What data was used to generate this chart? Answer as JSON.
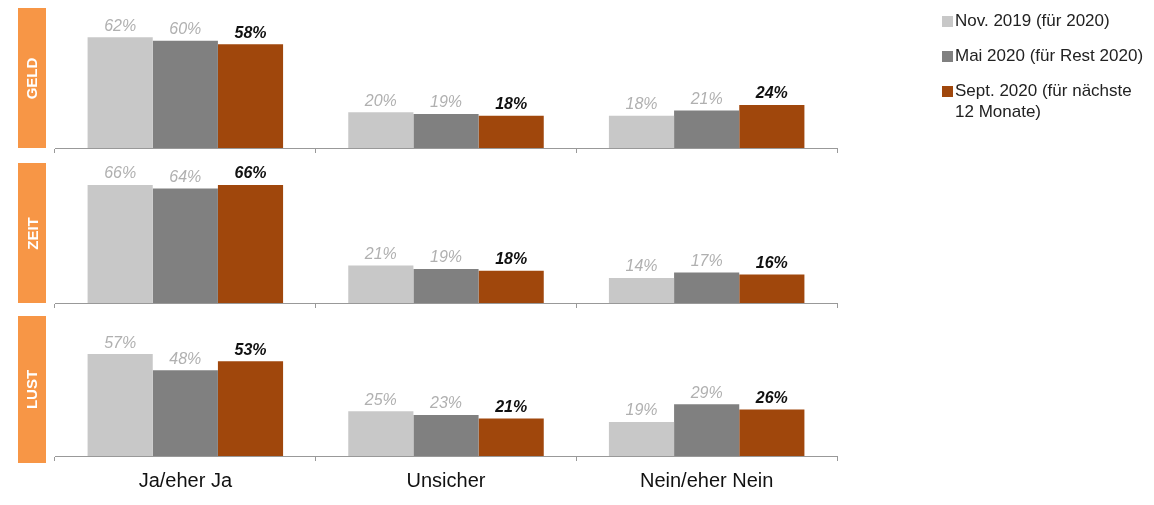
{
  "chart_data": [
    {
      "type": "bar",
      "title": "GELD",
      "categories": [
        null,
        null,
        null
      ],
      "tick_labels": false,
      "legend": "right",
      "series": [
        {
          "name": "Nov. 2019 (für 2020)",
          "color": "#c8c8c8",
          "values": [
            62,
            20,
            18
          ],
          "value_labels": [
            "62%",
            "20%",
            "18%"
          ]
        },
        {
          "name": "Mai 2020 (für Rest 2020)",
          "color": "#808080",
          "values": [
            60,
            19,
            21
          ],
          "value_labels": [
            "60%",
            "19%",
            "21%"
          ]
        },
        {
          "name": "Sept. 2020 (für nächste 12 Monate)",
          "color": "#a0470c",
          "values": [
            58,
            18,
            24
          ],
          "value_labels": [
            "58%",
            "18%",
            "24%"
          ]
        }
      ]
    },
    {
      "type": "bar",
      "title": "ZEIT",
      "categories": [
        null,
        null,
        null
      ],
      "tick_labels": false,
      "series": [
        {
          "color": "#c8c8c8",
          "values": [
            66,
            21,
            14
          ],
          "value_labels": [
            "66%",
            "21%",
            "14%"
          ]
        },
        {
          "color": "#808080",
          "values": [
            64,
            19,
            17
          ],
          "value_labels": [
            "64%",
            "19%",
            "17%"
          ]
        },
        {
          "color": "#a0470c",
          "values": [
            66,
            18,
            16
          ],
          "value_labels": [
            "66%",
            "18%",
            "16%"
          ]
        }
      ]
    },
    {
      "type": "bar",
      "title": "LUST",
      "categories": [
        "Ja/eher Ja",
        "Unsicher",
        "Nein/eher Nein"
      ],
      "tick_labels": "x",
      "series": [
        {
          "color": "#c8c8c8",
          "values": [
            57,
            25,
            19
          ],
          "value_labels": [
            "57%",
            "25%",
            "19%"
          ]
        },
        {
          "color": "#808080",
          "values": [
            48,
            23,
            29
          ],
          "value_labels": [
            "48%",
            "23%",
            "29%"
          ]
        },
        {
          "color": "#a0470c",
          "values": [
            53,
            21,
            26
          ],
          "value_labels": [
            "53%",
            "21%",
            "26%"
          ]
        }
      ]
    }
  ]
}
